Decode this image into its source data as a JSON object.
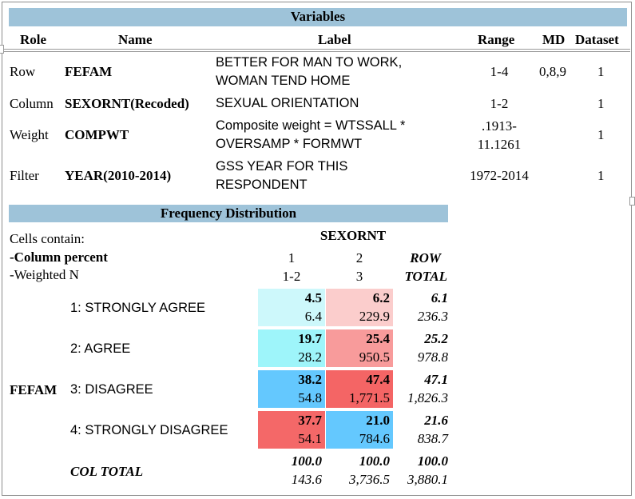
{
  "variables": {
    "title": "Variables",
    "headers": {
      "role": "Role",
      "name": "Name",
      "label": "Label",
      "range": "Range",
      "md": "MD",
      "dataset": "Dataset"
    },
    "rows": [
      {
        "role": "Row",
        "name": "FEFAM",
        "label1": "BETTER FOR MAN TO WORK,",
        "label2": "WOMAN TEND HOME",
        "range1": "1-4",
        "range2": "",
        "md": "0,8,9",
        "dataset": "1"
      },
      {
        "role": "Column",
        "name": "SEXORNT(Recoded)",
        "label1": "SEXUAL ORIENTATION",
        "label2": "",
        "range1": "1-2",
        "range2": "",
        "md": "",
        "dataset": "1"
      },
      {
        "role": "Weight",
        "name": "COMPWT",
        "label1": "Composite weight = WTSSALL *",
        "label2": "OVERSAMP * FORMWT",
        "range1": ".1913-",
        "range2": "11.1261",
        "md": "",
        "dataset": "1"
      },
      {
        "role": "Filter",
        "name": "YEAR(2010-2014)",
        "label1": "GSS YEAR FOR THIS",
        "label2": "RESPONDENT",
        "range1": "1972-2014",
        "range2": "",
        "md": "",
        "dataset": "1"
      }
    ]
  },
  "frequency": {
    "title": "Frequency Distribution",
    "cells_contain": "Cells contain:",
    "col_percent": "-Column percent",
    "weighted_n": "-Weighted N",
    "col_var": "SEXORNT",
    "col1_code": "1",
    "col1_range": "1-2",
    "col2_code": "2",
    "col2_range": "3",
    "row_total_1": "ROW",
    "row_total_2": "TOTAL",
    "row_var": "FEFAM",
    "rows": [
      {
        "label": "1: STRONGLY AGREE",
        "c1_pct": "4.5",
        "c1_n": "6.4",
        "c2_pct": "6.2",
        "c2_n": "229.9",
        "t_pct": "6.1",
        "t_n": "236.3",
        "c1_color": "#cdf8fb",
        "c2_color": "#fbcdcc"
      },
      {
        "label": "2: AGREE",
        "c1_pct": "19.7",
        "c1_n": "28.2",
        "c2_pct": "25.4",
        "c2_n": "950.5",
        "t_pct": "25.2",
        "t_n": "978.8",
        "c1_color": "#9ef5fa",
        "c2_color": "#f89b9b"
      },
      {
        "label": "3: DISAGREE",
        "c1_pct": "38.2",
        "c1_n": "54.8",
        "c2_pct": "47.4",
        "c2_n": "1,771.5",
        "t_pct": "47.1",
        "t_n": "1,826.3",
        "c1_color": "#64c8fe",
        "c2_color": "#f46565"
      },
      {
        "label": "4: STRONGLY DISAGREE",
        "c1_pct": "37.7",
        "c1_n": "54.1",
        "c2_pct": "21.0",
        "c2_n": "784.6",
        "t_pct": "21.6",
        "t_n": "838.7",
        "c1_color": "#f46868",
        "c2_color": "#64c8fe"
      }
    ],
    "col_total_label": "COL TOTAL",
    "col_total": {
      "c1_pct": "100.0",
      "c1_n": "143.6",
      "c2_pct": "100.0",
      "c2_n": "3,736.5",
      "t_pct": "100.0",
      "t_n": "3,880.1"
    }
  }
}
